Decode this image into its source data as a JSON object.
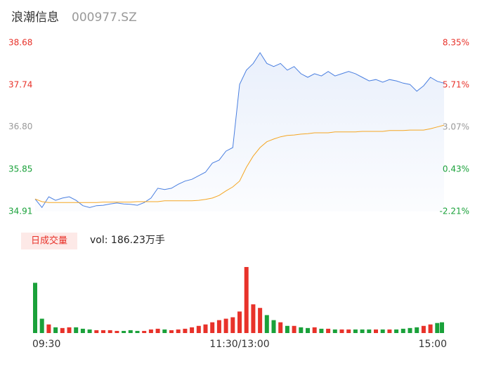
{
  "chart_data": {
    "type": "intraday",
    "title": "浪潮信息",
    "subtitle": "000977.SZ",
    "x": [
      0,
      4,
      8,
      12,
      16,
      20,
      24,
      28,
      32,
      36,
      40,
      44,
      48,
      52,
      56,
      60,
      64,
      68,
      72,
      76,
      80,
      84,
      88,
      92,
      96,
      100,
      104,
      108,
      112,
      116,
      120,
      124,
      128,
      132,
      136,
      140,
      144,
      148,
      152,
      156,
      160,
      164,
      168,
      172,
      176,
      180,
      184,
      188,
      192,
      196,
      200,
      204,
      208,
      212,
      216,
      220,
      224,
      228,
      232,
      236,
      240
    ],
    "xlim": [
      0,
      240
    ],
    "xticks": [
      {
        "value": 0,
        "label": "09:30"
      },
      {
        "value": 120,
        "label": "11:30/13:00"
      },
      {
        "value": 240,
        "label": "15:00"
      }
    ],
    "series": [
      {
        "color": "#4a7fe0",
        "values": [
          35.19,
          35.0,
          35.24,
          35.16,
          35.21,
          35.24,
          35.16,
          35.04,
          35.0,
          35.04,
          35.05,
          35.08,
          35.1,
          35.08,
          35.07,
          35.05,
          35.11,
          35.21,
          35.43,
          35.4,
          35.43,
          35.52,
          35.59,
          35.63,
          35.71,
          35.79,
          35.99,
          36.06,
          36.26,
          36.34,
          37.75,
          38.07,
          38.22,
          38.46,
          38.22,
          38.15,
          38.22,
          38.07,
          38.15,
          37.99,
          37.91,
          37.99,
          37.94,
          38.04,
          37.94,
          37.99,
          38.04,
          37.99,
          37.91,
          37.83,
          37.86,
          37.8,
          37.86,
          37.83,
          37.78,
          37.75,
          37.6,
          37.72,
          37.91,
          37.82,
          37.78
        ]
      },
      {
        "color": "#f5a623",
        "values": [
          35.19,
          35.13,
          35.11,
          35.11,
          35.11,
          35.11,
          35.11,
          35.11,
          35.11,
          35.11,
          35.12,
          35.12,
          35.12,
          35.12,
          35.12,
          35.13,
          35.13,
          35.13,
          35.13,
          35.15,
          35.15,
          35.15,
          35.15,
          35.15,
          35.16,
          35.18,
          35.21,
          35.27,
          35.37,
          35.46,
          35.59,
          35.9,
          36.15,
          36.34,
          36.47,
          36.53,
          36.58,
          36.61,
          36.62,
          36.64,
          36.65,
          36.67,
          36.67,
          36.67,
          36.69,
          36.69,
          36.69,
          36.69,
          36.7,
          36.7,
          36.7,
          36.7,
          36.72,
          36.72,
          36.72,
          36.73,
          36.73,
          36.73,
          36.76,
          36.8,
          36.84
        ]
      }
    ],
    "ylim": [
      34.91,
      38.68
    ],
    "yticks": [
      34.91,
      35.85,
      {
        "value": 36.8,
        "label": "36.80"
      },
      37.74,
      38.68
    ],
    "y2lim": [
      -2.21,
      8.35
    ],
    "y2ticks": [
      {
        "value": -2.21,
        "label": "-2.21%"
      },
      {
        "value": 0.43,
        "label": "0.43%"
      },
      {
        "value": 3.07,
        "label": "3.07%"
      },
      {
        "value": 5.71,
        "label": "5.71%"
      },
      {
        "value": 8.35,
        "label": "8.35%"
      }
    ],
    "up_color": "#e8322a",
    "down_color": "#1aa13a",
    "flat_color": "#999999",
    "volume": {
      "label": "日成交量",
      "summary": "vol: 186.23万手",
      "values": [
        70,
        20,
        12,
        8,
        7,
        8,
        8,
        6,
        5,
        4,
        4,
        4,
        3,
        3,
        4,
        3,
        3,
        5,
        6,
        5,
        4,
        5,
        6,
        8,
        10,
        12,
        15,
        18,
        20,
        22,
        30,
        92,
        40,
        35,
        25,
        18,
        15,
        10,
        10,
        8,
        7,
        8,
        6,
        6,
        5,
        5,
        5,
        5,
        5,
        5,
        5,
        5,
        5,
        5,
        6,
        7,
        8,
        10,
        12,
        14,
        15
      ]
    }
  }
}
